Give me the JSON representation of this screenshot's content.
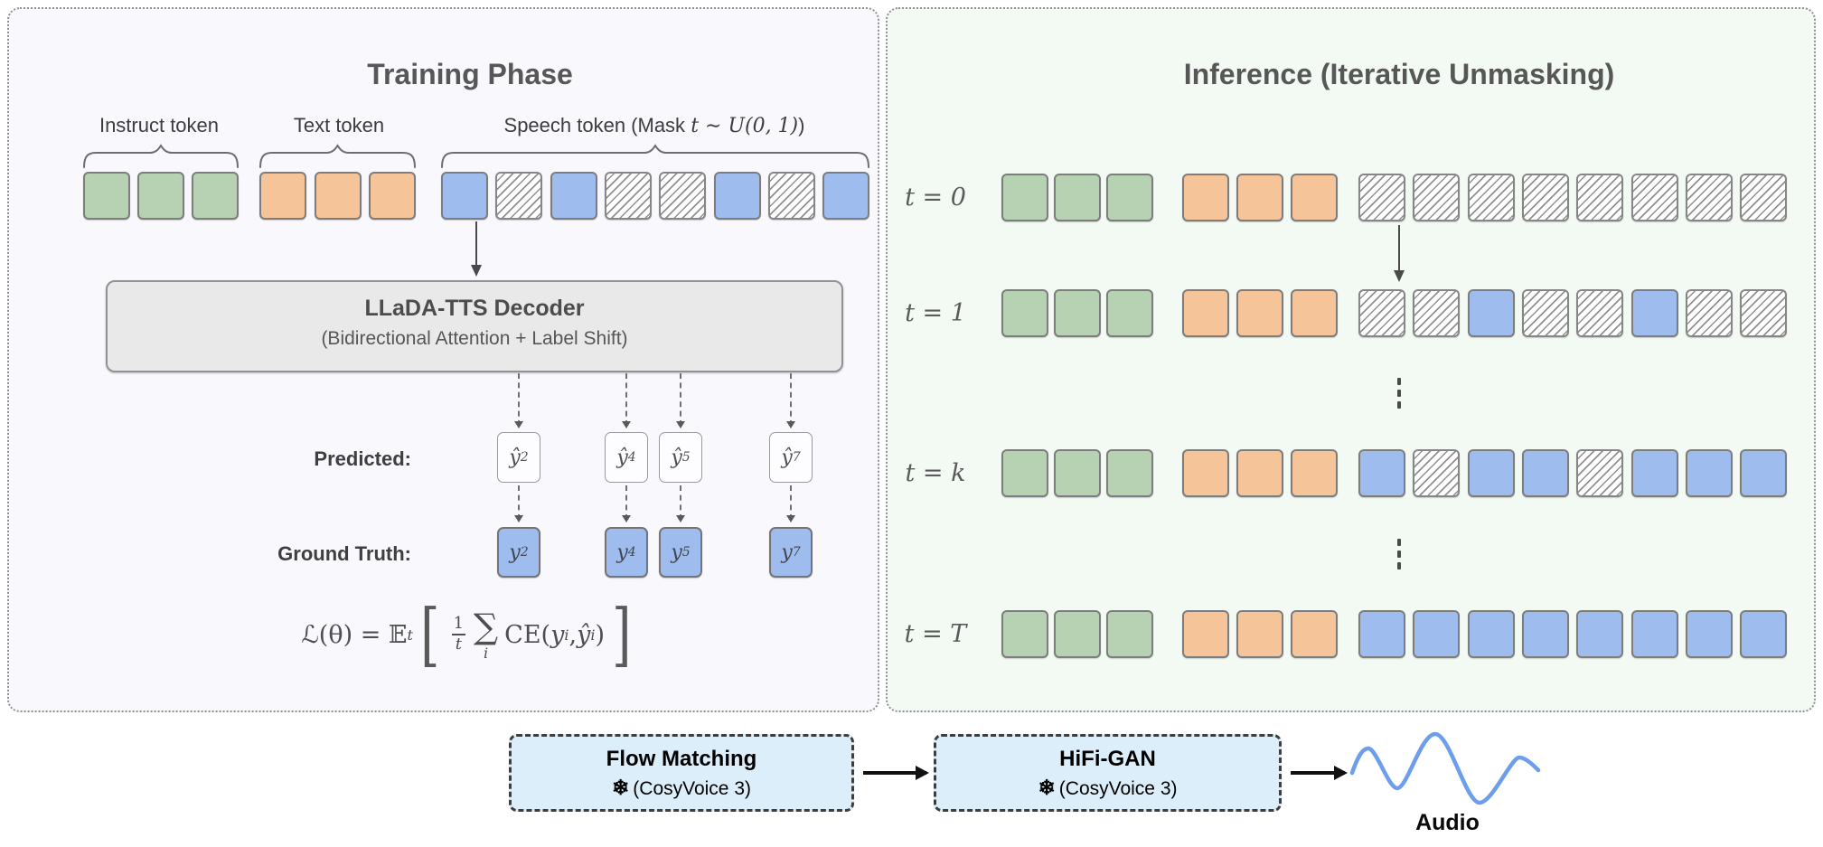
{
  "colors": {
    "instruct_token": "#b7d1b3",
    "text_token": "#f5c499",
    "speech_token": "#9fbcee",
    "mask_hatch_line": "#909090",
    "training_panel_bg": "#f8f8fd",
    "inference_panel_bg": "#f3faf4",
    "decoder_box_bg": "#e9e9e9",
    "pipeline_box_bg": "#dceefa",
    "waveform": "#6d9eeb"
  },
  "training": {
    "title": "Training Phase",
    "groups": [
      {
        "name": "instruct",
        "label": "Instruct token",
        "tokens": [
          "green",
          "green",
          "green"
        ]
      },
      {
        "name": "text",
        "label": "Text token",
        "tokens": [
          "orange",
          "orange",
          "orange"
        ]
      },
      {
        "name": "speech",
        "label_prefix": "Speech token (Mask ",
        "label_math": "t ∼ U(0, 1)",
        "label_suffix": ")",
        "tokens": [
          "blue",
          "mask",
          "blue",
          "mask",
          "mask",
          "blue",
          "mask",
          "blue"
        ]
      }
    ],
    "decoder_title": "LLaDA-TTS Decoder",
    "decoder_subtitle": "(Bidirectional Attention + Label Shift)",
    "predicted_label": "Predicted:",
    "ground_truth_label": "Ground Truth:",
    "predicted_tokens": [
      {
        "base": "ŷ",
        "sub": "2"
      },
      {
        "base": "ŷ",
        "sub": "4"
      },
      {
        "base": "ŷ",
        "sub": "5"
      },
      {
        "base": "ŷ",
        "sub": "7"
      }
    ],
    "ground_truth_tokens": [
      {
        "base": "y",
        "sub": "2"
      },
      {
        "base": "y",
        "sub": "4"
      },
      {
        "base": "y",
        "sub": "5"
      },
      {
        "base": "y",
        "sub": "7"
      }
    ],
    "formula": {
      "lhs": "ℒ(θ) = 𝔼",
      "lhs_sub": "t",
      "open_bracket": "[",
      "frac_num": "1",
      "frac_den": "t",
      "sum_symbol": "∑",
      "sum_sub": "i",
      "ce_open": "CE(",
      "y1": "y",
      "y1_sub": "i",
      "comma": ", ",
      "y2": "ŷ",
      "y2_sub": "i",
      "close_paren": ")",
      "close_bracket": "]"
    }
  },
  "inference": {
    "title": "Inference (Iterative Unmasking)",
    "prefix_tokens": [
      "green",
      "green",
      "green",
      "orange",
      "orange",
      "orange"
    ],
    "rows": [
      {
        "label": "t = 0",
        "speech": [
          "mask",
          "mask",
          "mask",
          "mask",
          "mask",
          "mask",
          "mask",
          "mask"
        ]
      },
      {
        "label": "t = 1",
        "speech": [
          "mask",
          "mask",
          "blue",
          "mask",
          "mask",
          "blue",
          "mask",
          "mask"
        ]
      },
      {
        "label": "t = k",
        "speech": [
          "blue",
          "mask",
          "blue",
          "blue",
          "mask",
          "blue",
          "blue",
          "blue"
        ]
      },
      {
        "label": "t = T",
        "speech": [
          "blue",
          "blue",
          "blue",
          "blue",
          "blue",
          "blue",
          "blue",
          "blue"
        ]
      }
    ]
  },
  "pipeline": {
    "flow_matching": {
      "title": "Flow Matching",
      "frozen_icon": "❄",
      "subtitle": "(CosyVoice 3)"
    },
    "hifi_gan": {
      "title": "HiFi-GAN",
      "frozen_icon": "❄",
      "subtitle": "(CosyVoice 3)"
    },
    "audio_label": "Audio"
  }
}
